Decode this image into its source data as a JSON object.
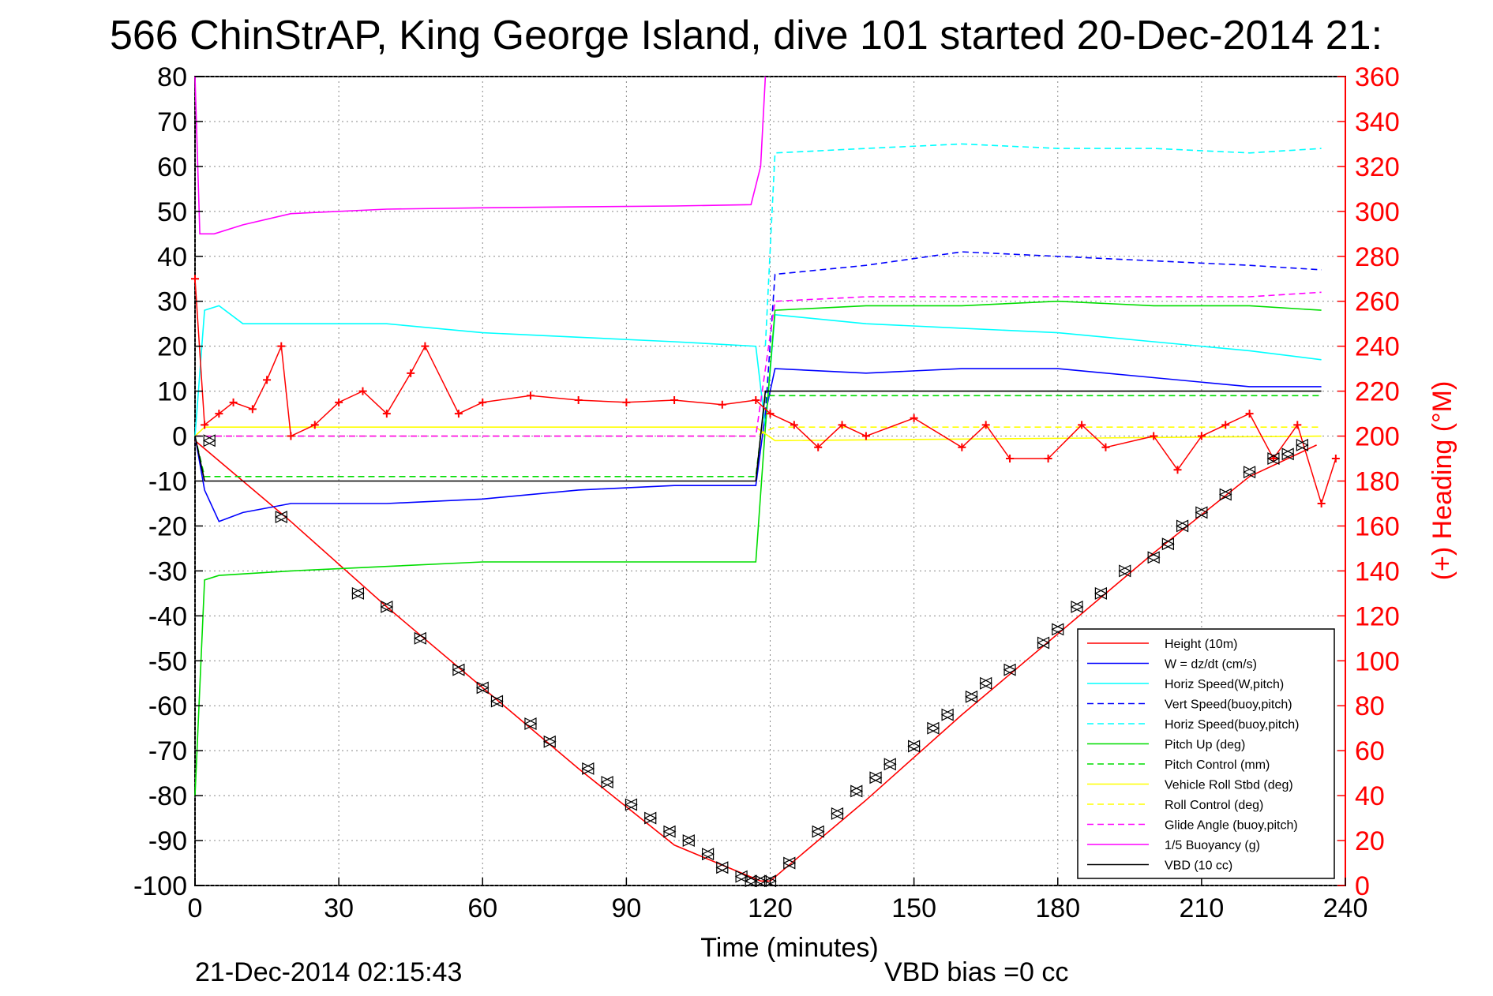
{
  "chart_data": {
    "type": "line",
    "title": "566 ChinStrAP, King George Island, dive 101 started 20-Dec-2014 21:",
    "xlabel": "Time (minutes)",
    "ylabel": "",
    "y2label": "(+) Heading (°M)",
    "xlim": [
      0,
      240
    ],
    "ylim": [
      -100,
      80
    ],
    "y2lim": [
      0,
      360
    ],
    "x_ticks": [
      "0",
      "30",
      "60",
      "90",
      "120",
      "150",
      "180",
      "210",
      "240"
    ],
    "y_ticks": [
      "80",
      "70",
      "60",
      "50",
      "40",
      "30",
      "20",
      "10",
      "0",
      "-10",
      "-20",
      "-30",
      "-40",
      "-50",
      "-60",
      "-70",
      "-80",
      "-90",
      "-100"
    ],
    "y2_ticks": [
      "360",
      "340",
      "320",
      "300",
      "280",
      "260",
      "240",
      "220",
      "200",
      "180",
      "160",
      "140",
      "120",
      "100",
      "80",
      "60",
      "40",
      "20",
      "0"
    ],
    "grid": true,
    "legend_position": "bottom-right",
    "series": [
      {
        "name": "Height (10m)",
        "color": "#ff0000",
        "style": "solid",
        "x": [
          0,
          20,
          40,
          60,
          80,
          100,
          118,
          120,
          140,
          160,
          180,
          200,
          220,
          234
        ],
        "y": [
          -1,
          -19,
          -38,
          -56,
          -74,
          -91,
          -99,
          -99,
          -81,
          -62,
          -44,
          -26,
          -9,
          -2
        ]
      },
      {
        "name": "W = dz/dt (cm/s)",
        "color": "#0000ff",
        "style": "solid",
        "x": [
          0,
          2,
          5,
          10,
          20,
          40,
          60,
          80,
          100,
          117,
          119,
          121,
          140,
          160,
          180,
          200,
          220,
          235
        ],
        "y": [
          0,
          -12,
          -19,
          -17,
          -15,
          -15,
          -14,
          -12,
          -11,
          -11,
          5,
          15,
          14,
          15,
          15,
          13,
          11,
          11
        ]
      },
      {
        "name": "Horiz Speed(W,pitch)",
        "color": "#00ffff",
        "style": "solid",
        "x": [
          0,
          2,
          5,
          10,
          40,
          60,
          80,
          100,
          117,
          119,
          121,
          140,
          160,
          180,
          200,
          220,
          235
        ],
        "y": [
          0,
          28,
          29,
          25,
          25,
          23,
          22,
          21,
          20,
          2,
          27,
          25,
          24,
          23,
          21,
          19,
          17
        ]
      },
      {
        "name": "Vert Speed(buoy,pitch)",
        "color": "#0000ff",
        "style": "dashed",
        "x": [
          119,
          121,
          140,
          160,
          180,
          200,
          220,
          235
        ],
        "y": [
          5,
          36,
          38,
          41,
          40,
          39,
          38,
          37
        ]
      },
      {
        "name": "Horiz Speed(buoy,pitch)",
        "color": "#00ffff",
        "style": "dashed",
        "x": [
          119,
          121,
          140,
          160,
          180,
          200,
          220,
          235
        ],
        "y": [
          20,
          63,
          64,
          65,
          64,
          64,
          63,
          64
        ]
      },
      {
        "name": "Pitch Up (deg)",
        "color": "#00dd00",
        "style": "solid",
        "x": [
          0,
          2,
          5,
          20,
          40,
          60,
          80,
          100,
          117,
          119,
          121,
          140,
          160,
          180,
          200,
          220,
          235
        ],
        "y": [
          -80,
          -32,
          -31,
          -30,
          -29,
          -28,
          -28,
          -28,
          -28,
          2,
          28,
          29,
          29,
          30,
          29,
          29,
          28
        ]
      },
      {
        "name": "Pitch Control (mm)",
        "color": "#00dd00",
        "style": "dashed",
        "x": [
          0,
          2,
          117,
          119,
          235
        ],
        "y": [
          0,
          -9,
          -9,
          9,
          9
        ]
      },
      {
        "name": "Vehicle Roll Stbd (deg)",
        "color": "#ffff00",
        "style": "solid",
        "x": [
          0,
          2,
          117,
          121,
          235
        ],
        "y": [
          0,
          2,
          2,
          -1,
          0
        ]
      },
      {
        "name": "Roll Control (deg)",
        "color": "#ffff00",
        "style": "dashed",
        "x": [
          0,
          117,
          121,
          235
        ],
        "y": [
          0,
          0,
          2,
          2
        ]
      },
      {
        "name": "Glide Angle (buoy,pitch)",
        "color": "#ff00ff",
        "style": "dashed",
        "x": [
          0,
          117,
          121,
          140,
          160,
          180,
          200,
          220,
          235
        ],
        "y": [
          0,
          0,
          30,
          31,
          31,
          31,
          31,
          31,
          32
        ]
      },
      {
        "name": "1/5 Buoyancy (g)",
        "color": "#ff00ff",
        "style": "solid",
        "x": [
          0,
          1,
          4,
          10,
          20,
          40,
          60,
          80,
          100,
          116,
          118,
          119
        ],
        "y": [
          80,
          45,
          45,
          47,
          49.5,
          50.5,
          50.8,
          51,
          51.2,
          51.5,
          60,
          80
        ]
      },
      {
        "name": "VBD (10 cc)",
        "color": "#000000",
        "style": "solid",
        "x": [
          0,
          2,
          117,
          119,
          235
        ],
        "y": [
          0,
          -10,
          -10,
          10,
          10
        ]
      }
    ],
    "heading_series": {
      "name": "(+) Heading",
      "color": "#ff0000",
      "marker": "+",
      "axis": "right",
      "x": [
        0,
        2,
        5,
        8,
        12,
        15,
        18,
        20,
        25,
        30,
        35,
        40,
        45,
        48,
        55,
        60,
        70,
        80,
        90,
        100,
        110,
        117,
        120,
        125,
        130,
        135,
        140,
        150,
        160,
        165,
        170,
        178,
        185,
        190,
        200,
        205,
        210,
        215,
        220,
        225,
        230,
        235,
        238
      ],
      "y": [
        270,
        205,
        210,
        215,
        212,
        225,
        240,
        200,
        205,
        215,
        220,
        210,
        228,
        240,
        210,
        215,
        218,
        216,
        215,
        216,
        214,
        216,
        210,
        205,
        195,
        205,
        200,
        208,
        195,
        205,
        190,
        190,
        205,
        195,
        200,
        185,
        200,
        205,
        210,
        190,
        205,
        170,
        190
      ]
    },
    "markers_series": {
      "name": "Height markers",
      "color": "#000000",
      "marker": "triangle",
      "x": [
        3,
        18,
        34,
        40,
        47,
        55,
        60,
        63,
        70,
        74,
        82,
        86,
        91,
        95,
        99,
        103,
        107,
        110,
        114,
        116,
        118,
        120,
        124,
        130,
        134,
        138,
        142,
        145,
        150,
        154,
        157,
        162,
        165,
        170,
        177,
        180,
        184,
        189,
        194,
        200,
        203,
        206,
        210,
        215,
        220,
        225,
        228,
        231
      ],
      "y": [
        -1,
        -18,
        -35,
        -38,
        -45,
        -52,
        -56,
        -59,
        -64,
        -68,
        -74,
        -77,
        -82,
        -85,
        -88,
        -90,
        -93,
        -96,
        -98,
        -99,
        -99,
        -99,
        -95,
        -88,
        -84,
        -79,
        -76,
        -73,
        -69,
        -65,
        -62,
        -58,
        -55,
        -52,
        -46,
        -43,
        -38,
        -35,
        -30,
        -27,
        -24,
        -20,
        -17,
        -13,
        -8,
        -5,
        -4,
        -2
      ]
    },
    "annotations": [
      "21-Dec-2014 02:15:43",
      "VBD bias =0 cc"
    ]
  }
}
